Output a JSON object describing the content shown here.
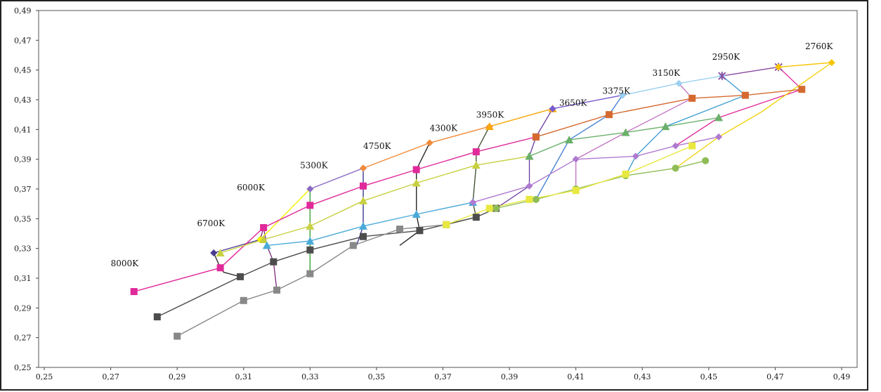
{
  "chart_data": {
    "type": "scatter",
    "title": "",
    "xlabel": "",
    "ylabel": "",
    "xlim": [
      0.25,
      0.49
    ],
    "ylim": [
      0.25,
      0.49
    ],
    "grid": false,
    "legend": "none",
    "x_ticks": [
      "0,25",
      "0,27",
      "0,29",
      "0,31",
      "0,33",
      "0,35",
      "0,37",
      "0,39",
      "0,41",
      "0,43",
      "0,45",
      "0,47",
      "0,49"
    ],
    "y_ticks": [
      "0,25",
      "0,27",
      "0,29",
      "0,31",
      "0,33",
      "0,35",
      "0,37",
      "0,39",
      "0,41",
      "0,43",
      "0,45",
      "0,47",
      "0,49"
    ],
    "cct_labels": [
      {
        "text": "8000K",
        "x": 0.27,
        "y": 0.318
      },
      {
        "text": "6700K",
        "x": 0.296,
        "y": 0.345
      },
      {
        "text": "6000K",
        "x": 0.308,
        "y": 0.369
      },
      {
        "text": "5300K",
        "x": 0.327,
        "y": 0.384
      },
      {
        "text": "4750K",
        "x": 0.346,
        "y": 0.397
      },
      {
        "text": "4300K",
        "x": 0.366,
        "y": 0.409
      },
      {
        "text": "3950K",
        "x": 0.38,
        "y": 0.418
      },
      {
        "text": "3650K",
        "x": 0.405,
        "y": 0.426
      },
      {
        "text": "3375K",
        "x": 0.418,
        "y": 0.434
      },
      {
        "text": "3150K",
        "x": 0.433,
        "y": 0.446
      },
      {
        "text": "2950K",
        "x": 0.451,
        "y": 0.457
      },
      {
        "text": "2760K",
        "x": 0.479,
        "y": 0.464
      }
    ],
    "series": [
      {
        "color": "#4a3c8c",
        "marker": "diamond",
        "points": [
          [
            0.301,
            0.327
          ],
          [
            0.315,
            0.336
          ]
        ]
      },
      {
        "color": "#f2f200",
        "marker": "diamond",
        "points": [
          [
            0.315,
            0.336
          ],
          [
            0.33,
            0.37
          ]
        ]
      },
      {
        "color": "#8a6ac8",
        "marker": "diamond",
        "points": [
          [
            0.33,
            0.37
          ],
          [
            0.346,
            0.384
          ]
        ]
      },
      {
        "color": "#f08a3a",
        "marker": "diamond",
        "points": [
          [
            0.346,
            0.384
          ],
          [
            0.366,
            0.401
          ],
          [
            0.384,
            0.412
          ]
        ]
      },
      {
        "color": "#f7a80b",
        "marker": "triangle",
        "points": [
          [
            0.384,
            0.412
          ],
          [
            0.403,
            0.424
          ]
        ]
      },
      {
        "color": "#7a5cd0",
        "marker": "diamond",
        "points": [
          [
            0.403,
            0.424
          ],
          [
            0.424,
            0.433
          ]
        ]
      },
      {
        "color": "#9ad0f0",
        "marker": "diamond",
        "points": [
          [
            0.424,
            0.433
          ],
          [
            0.441,
            0.441
          ],
          [
            0.454,
            0.446
          ]
        ]
      },
      {
        "color": "#8a4aa0",
        "marker": "star",
        "points": [
          [
            0.454,
            0.446
          ],
          [
            0.471,
            0.452
          ]
        ]
      },
      {
        "color": "#f5c400",
        "marker": "diamond",
        "points": [
          [
            0.471,
            0.452
          ],
          [
            0.487,
            0.455
          ]
        ]
      },
      {
        "color": "#e02a9a",
        "marker": "square",
        "points": [
          [
            0.277,
            0.301
          ],
          [
            0.303,
            0.317
          ],
          [
            0.316,
            0.344
          ],
          [
            0.33,
            0.359
          ],
          [
            0.346,
            0.372
          ],
          [
            0.362,
            0.383
          ],
          [
            0.38,
            0.395
          ],
          [
            0.398,
            0.405
          ]
        ]
      },
      {
        "color": "#d56a30",
        "marker": "square",
        "points": [
          [
            0.398,
            0.405
          ],
          [
            0.42,
            0.42
          ],
          [
            0.445,
            0.431
          ],
          [
            0.461,
            0.433
          ],
          [
            0.478,
            0.437
          ]
        ]
      },
      {
        "color": "#c7d040",
        "marker": "triangle",
        "points": [
          [
            0.303,
            0.327
          ],
          [
            0.316,
            0.336
          ],
          [
            0.33,
            0.345
          ],
          [
            0.346,
            0.362
          ],
          [
            0.362,
            0.374
          ],
          [
            0.38,
            0.386
          ],
          [
            0.396,
            0.392
          ]
        ]
      },
      {
        "color": "#6ab06a",
        "marker": "triangle",
        "points": [
          [
            0.396,
            0.392
          ],
          [
            0.408,
            0.403
          ],
          [
            0.425,
            0.408
          ],
          [
            0.437,
            0.412
          ],
          [
            0.453,
            0.418
          ]
        ]
      },
      {
        "color": "#4aaad8",
        "marker": "triangle",
        "points": [
          [
            0.317,
            0.332
          ],
          [
            0.33,
            0.335
          ],
          [
            0.346,
            0.345
          ],
          [
            0.362,
            0.353
          ],
          [
            0.379,
            0.361
          ]
        ]
      },
      {
        "color": "#b07ad0",
        "marker": "diamond",
        "points": [
          [
            0.379,
            0.361
          ],
          [
            0.396,
            0.372
          ],
          [
            0.41,
            0.39
          ],
          [
            0.428,
            0.392
          ],
          [
            0.44,
            0.399
          ],
          [
            0.453,
            0.405
          ]
        ]
      },
      {
        "color": "#4d4d4d",
        "marker": "square",
        "points": [
          [
            0.284,
            0.284
          ],
          [
            0.309,
            0.311
          ],
          [
            0.319,
            0.321
          ],
          [
            0.33,
            0.329
          ],
          [
            0.346,
            0.338
          ],
          [
            0.363,
            0.342
          ],
          [
            0.38,
            0.351
          ],
          [
            0.386,
            0.357
          ]
        ]
      },
      {
        "color": "#8fbc55",
        "marker": "circle",
        "points": [
          [
            0.386,
            0.357
          ],
          [
            0.398,
            0.363
          ],
          [
            0.41,
            0.37
          ],
          [
            0.425,
            0.379
          ],
          [
            0.44,
            0.384
          ],
          [
            0.449,
            0.389
          ]
        ]
      },
      {
        "color": "#888888",
        "marker": "square",
        "points": [
          [
            0.29,
            0.271
          ],
          [
            0.31,
            0.295
          ],
          [
            0.32,
            0.302
          ],
          [
            0.33,
            0.313
          ],
          [
            0.343,
            0.332
          ],
          [
            0.357,
            0.343
          ],
          [
            0.371,
            0.346
          ]
        ]
      },
      {
        "color": "#e8e840",
        "marker": "square",
        "points": [
          [
            0.371,
            0.346
          ],
          [
            0.384,
            0.357
          ],
          [
            0.396,
            0.363
          ],
          [
            0.41,
            0.369
          ],
          [
            0.425,
            0.38
          ],
          [
            0.445,
            0.399
          ]
        ]
      }
    ],
    "isotherms": [
      {
        "color": "#222222",
        "points": [
          [
            0.301,
            0.327
          ],
          [
            0.303,
            0.317
          ],
          [
            0.304,
            0.314
          ],
          [
            0.309,
            0.311
          ]
        ]
      },
      {
        "color": "#7a2a7a",
        "points": [
          [
            0.315,
            0.336
          ],
          [
            0.316,
            0.344
          ],
          [
            0.317,
            0.332
          ],
          [
            0.319,
            0.321
          ],
          [
            0.32,
            0.302
          ]
        ]
      },
      {
        "color": "#2a9a2a",
        "points": [
          [
            0.33,
            0.37
          ],
          [
            0.33,
            0.359
          ],
          [
            0.33,
            0.345
          ],
          [
            0.33,
            0.335
          ],
          [
            0.33,
            0.321
          ],
          [
            0.33,
            0.313
          ]
        ]
      },
      {
        "color": "#2a2a8a",
        "points": [
          [
            0.346,
            0.384
          ],
          [
            0.346,
            0.372
          ],
          [
            0.346,
            0.362
          ],
          [
            0.346,
            0.345
          ],
          [
            0.344,
            0.332
          ]
        ]
      },
      {
        "color": "#1a1a1a",
        "points": [
          [
            0.366,
            0.401
          ],
          [
            0.362,
            0.383
          ],
          [
            0.362,
            0.374
          ],
          [
            0.362,
            0.353
          ],
          [
            0.363,
            0.342
          ],
          [
            0.357,
            0.332
          ]
        ]
      },
      {
        "color": "#3a4a2a",
        "points": [
          [
            0.384,
            0.412
          ],
          [
            0.38,
            0.395
          ],
          [
            0.38,
            0.386
          ],
          [
            0.379,
            0.361
          ],
          [
            0.38,
            0.351
          ],
          [
            0.371,
            0.346
          ]
        ]
      },
      {
        "color": "#6a3aa0",
        "points": [
          [
            0.403,
            0.424
          ],
          [
            0.398,
            0.405
          ],
          [
            0.396,
            0.392
          ],
          [
            0.396,
            0.372
          ],
          [
            0.386,
            0.357
          ]
        ]
      },
      {
        "color": "#3a7ad0",
        "points": [
          [
            0.424,
            0.433
          ],
          [
            0.42,
            0.42
          ],
          [
            0.408,
            0.403
          ],
          [
            0.398,
            0.363
          ]
        ]
      },
      {
        "color": "#c070c0",
        "points": [
          [
            0.441,
            0.441
          ],
          [
            0.445,
            0.431
          ],
          [
            0.425,
            0.408
          ],
          [
            0.41,
            0.39
          ],
          [
            0.41,
            0.37
          ]
        ]
      },
      {
        "color": "#3a9ad0",
        "points": [
          [
            0.454,
            0.446
          ],
          [
            0.461,
            0.433
          ],
          [
            0.437,
            0.412
          ],
          [
            0.428,
            0.392
          ],
          [
            0.425,
            0.379
          ]
        ]
      },
      {
        "color": "#e02a9a",
        "points": [
          [
            0.471,
            0.452
          ],
          [
            0.478,
            0.437
          ],
          [
            0.453,
            0.418
          ],
          [
            0.44,
            0.399
          ]
        ]
      },
      {
        "color": "#f0d000",
        "points": [
          [
            0.487,
            0.455
          ],
          [
            0.466,
            0.422
          ],
          [
            0.453,
            0.405
          ],
          [
            0.44,
            0.384
          ]
        ]
      }
    ]
  }
}
